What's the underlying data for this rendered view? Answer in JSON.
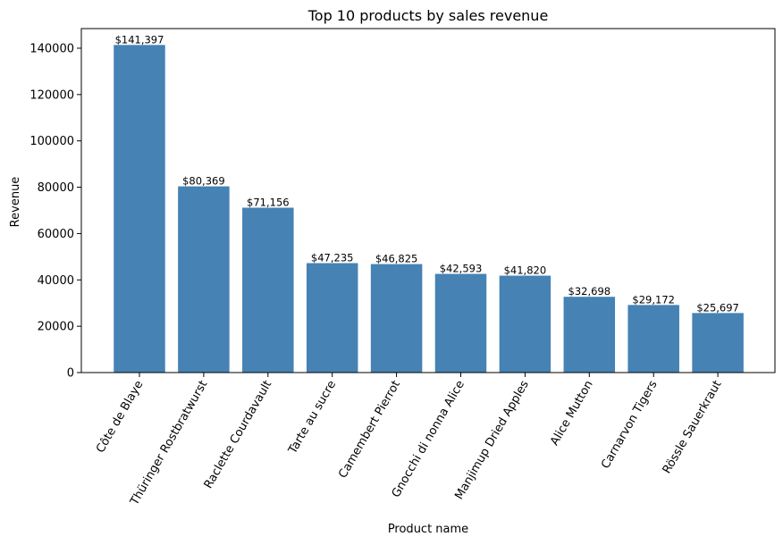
{
  "chart_data": {
    "type": "bar",
    "title": "Top 10 products by sales revenue",
    "xlabel": "Product name",
    "ylabel": "Revenue",
    "categories": [
      "Côte de Blaye",
      "Thüringer Rostbratwurst",
      "Raclette Courdavault",
      "Tarte au sucre",
      "Camembert Pierrot",
      "Gnocchi di nonna Alice",
      "Manjimup Dried Apples",
      "Alice Mutton",
      "Carnarvon Tigers",
      "Rössle Sauerkraut"
    ],
    "values": [
      141397,
      80369,
      71156,
      47235,
      46825,
      42593,
      41820,
      32698,
      29172,
      25697
    ],
    "value_labels": [
      "$141,397",
      "$80,369",
      "$71,156",
      "$47,235",
      "$46,825",
      "$42,593",
      "$41,820",
      "$32,698",
      "$29,172",
      "$25,697"
    ],
    "y_ticks": [
      0,
      20000,
      40000,
      60000,
      80000,
      100000,
      120000,
      140000
    ],
    "y_tick_labels": [
      "0",
      "20000",
      "40000",
      "60000",
      "80000",
      "100000",
      "120000",
      "140000"
    ],
    "ylim": [
      0,
      148469
    ],
    "bar_color": "#4682b4",
    "grid": false,
    "x_tick_rotation": "60 degrees"
  }
}
